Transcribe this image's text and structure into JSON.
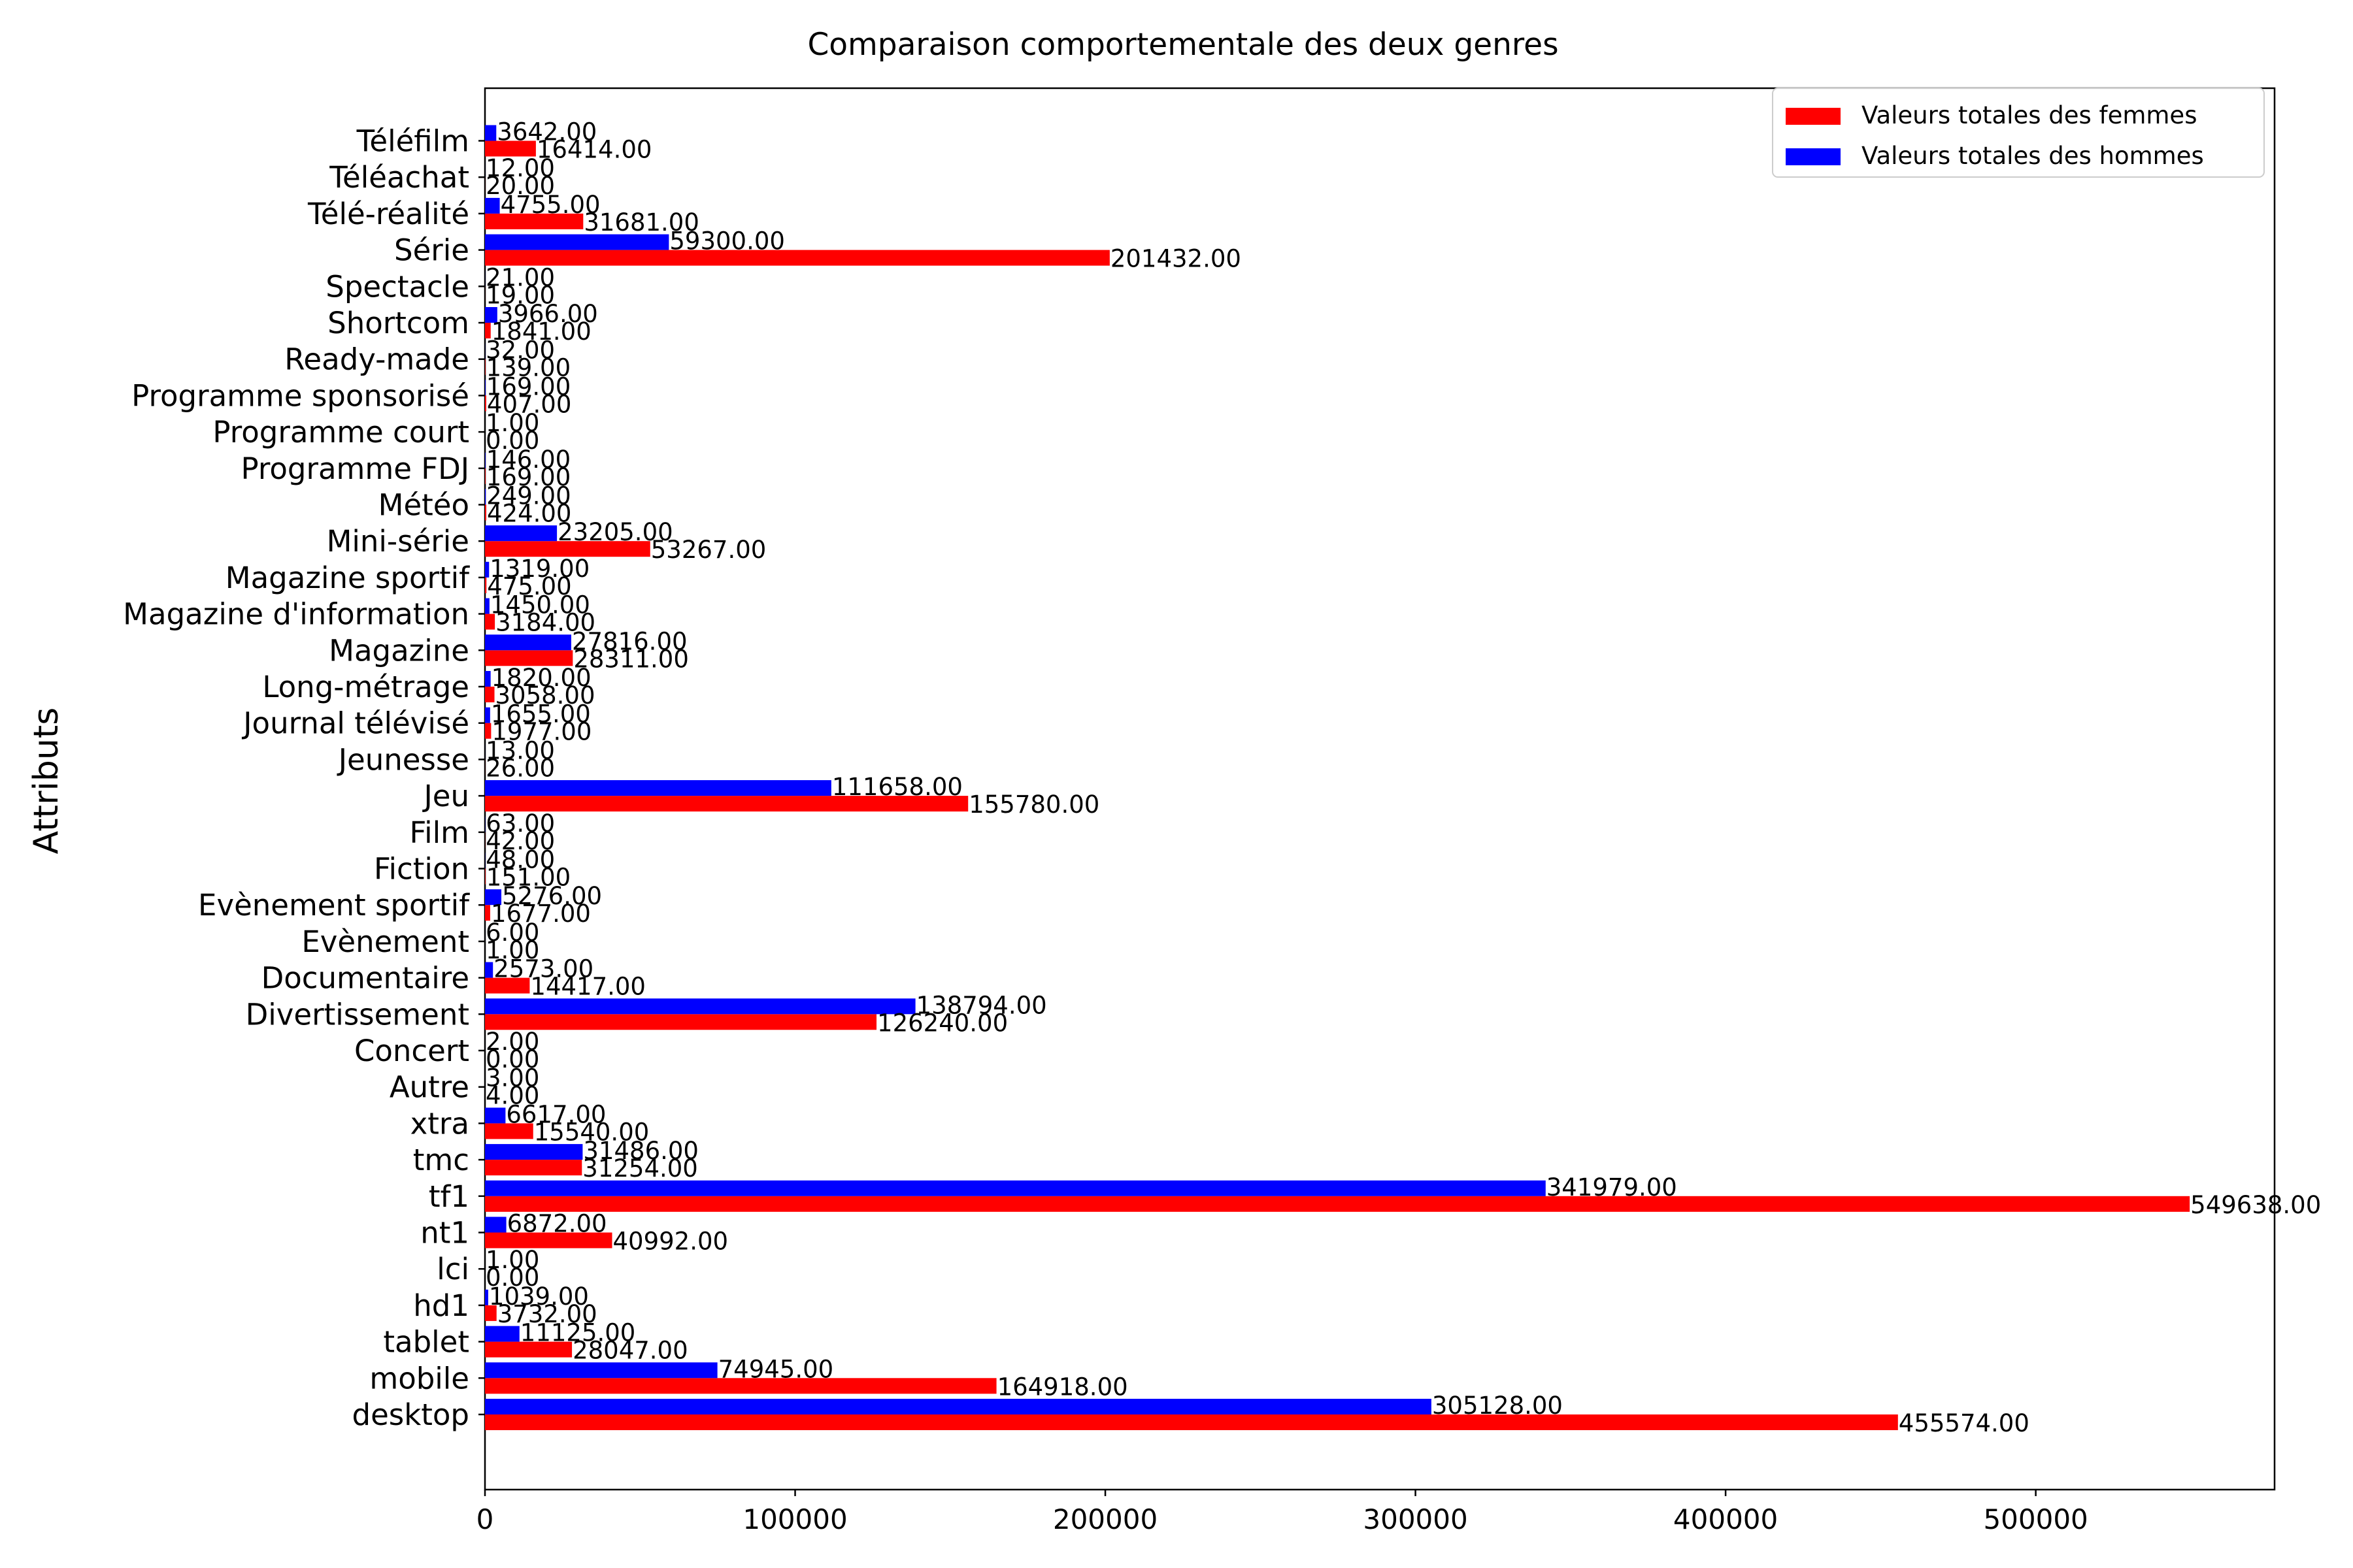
{
  "chart_data": {
    "type": "bar",
    "orientation": "horizontal",
    "title": "Comparaison comportementale des deux genres",
    "ylabel": "Attributs",
    "xlabel": "",
    "xlim": [
      0,
      577000
    ],
    "xticks": [
      0,
      100000,
      200000,
      300000,
      400000,
      500000
    ],
    "grid": false,
    "legend_position": "top-right",
    "categories": [
      "desktop",
      "mobile",
      "tablet",
      "hd1",
      "lci",
      "nt1",
      "tf1",
      "tmc",
      "xtra",
      "Autre",
      "Concert",
      "Divertissement",
      "Documentaire",
      "Evènement",
      "Evènement sportif",
      "Fiction",
      "Film",
      "Jeu",
      "Jeunesse",
      "Journal télévisé",
      "Long-métrage",
      "Magazine",
      "Magazine d'information",
      "Magazine sportif",
      "Mini-série",
      "Météo",
      "Programme FDJ",
      "Programme court",
      "Programme sponsorisé",
      "Ready-made",
      "Shortcom",
      "Spectacle",
      "Série",
      "Télé-réalité",
      "Téléachat",
      "Téléfilm"
    ],
    "series": [
      {
        "name": "Valeurs totales des femmes",
        "color": "#ff0000",
        "values": [
          455574,
          164918,
          28047,
          3732,
          0,
          40992,
          549638,
          31254,
          15540,
          4,
          0,
          126240,
          14417,
          1,
          1677,
          151,
          42,
          155780,
          26,
          1977,
          3058,
          28311,
          3184,
          475,
          53267,
          424,
          169,
          0,
          407,
          139,
          1841,
          19,
          201432,
          31681,
          20,
          16414
        ],
        "labels": [
          "455574.00",
          "164918.00",
          "28047.00",
          "3732.00",
          "0.00",
          "40992.00",
          "549638.00",
          "31254.00",
          "15540.00",
          "4.00",
          "0.00",
          "126240.00",
          "14417.00",
          "1.00",
          "1677.00",
          "151.00",
          "42.00",
          "155780.00",
          "26.00",
          "1977.00",
          "3058.00",
          "28311.00",
          "3184.00",
          "475.00",
          "53267.00",
          "424.00",
          "169.00",
          "0.00",
          "407.00",
          "139.00",
          "1841.00",
          "19.00",
          "201432.00",
          "31681.00",
          "20.00",
          "16414.00"
        ]
      },
      {
        "name": "Valeurs totales des hommes",
        "color": "#0000ff",
        "values": [
          305128,
          74945,
          11125,
          1039,
          1,
          6872,
          341979,
          31486,
          6617,
          3,
          2,
          138794,
          2573,
          6,
          5276,
          48,
          63,
          111658,
          13,
          1655,
          1820,
          27816,
          1450,
          1319,
          23205,
          249,
          146,
          1,
          169,
          32,
          3966,
          21,
          59300,
          4755,
          12,
          3642
        ],
        "labels": [
          "305128.00",
          "74945.00",
          "11125.00",
          "1039.00",
          "1.00",
          "6872.00",
          "341979.00",
          "31486.00",
          "6617.00",
          "3.00",
          "2.00",
          "138794.00",
          "2573.00",
          "6.00",
          "5276.00",
          "48.00",
          "63.00",
          "111658.00",
          "13.00",
          "1655.00",
          "1820.00",
          "27816.00",
          "1450.00",
          "1319.00",
          "23205.00",
          "249.00",
          "146.00",
          "1.00",
          "169.00",
          "32.00",
          "3966.00",
          "21.00",
          "59300.00",
          "4755.00",
          "12.00",
          "3642.00"
        ]
      }
    ]
  }
}
